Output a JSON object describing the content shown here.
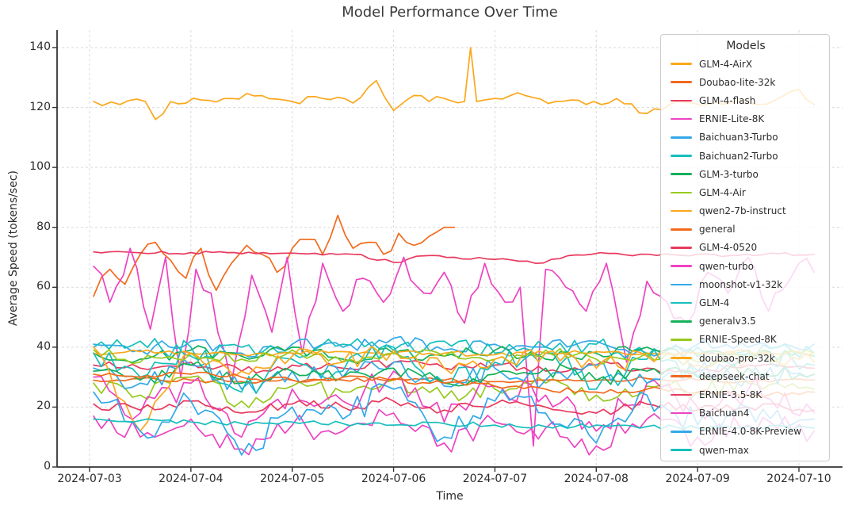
{
  "title": "Model Performance Over Time",
  "axes": {
    "xlabel": "Time",
    "ylabel": "Average Speed (tokens/sec)",
    "x_ticks": [
      "2024-07-03",
      "2024-07-04",
      "2024-07-05",
      "2024-07-06",
      "2024-07-07",
      "2024-07-08",
      "2024-07-09",
      "2024-07-10"
    ],
    "y_ticks": [
      0,
      20,
      40,
      60,
      80,
      100,
      120,
      140
    ],
    "ylim": [
      0,
      146
    ],
    "grid": "dashed",
    "spine_color": "#333333",
    "grid_color": "#d9d9d9"
  },
  "legend": {
    "title": "Models",
    "position": "right",
    "background": "rgba(255,255,255,0.8)"
  },
  "chart_data": {
    "type": "line",
    "x_unit": "days since 2024-07-03",
    "title": "Model Performance Over Time",
    "xlabel": "Time",
    "ylabel": "Average Speed (tokens/sec)",
    "series": [
      {
        "name": "GLM-4-AirX",
        "color": "#FBA71B",
        "jitter": 1.2,
        "x": [
          0.04,
          0.3,
          0.55,
          0.65,
          0.8,
          1.1,
          1.4,
          1.7,
          2.0,
          2.3,
          2.6,
          2.83,
          3.0,
          3.2,
          3.35,
          3.5,
          3.7,
          3.76,
          3.82,
          4.0,
          4.3,
          4.6,
          4.9,
          5.2,
          5.5,
          5.8,
          6.1,
          6.4,
          6.6,
          6.85,
          7.0,
          7.15
        ],
        "y": [
          122,
          121,
          122,
          116,
          122,
          122.5,
          123,
          124,
          122,
          123,
          121.5,
          129,
          119,
          124,
          122,
          123,
          122,
          140,
          122,
          123,
          124,
          122,
          121,
          123,
          118,
          122,
          121,
          122,
          121,
          124,
          126,
          121
        ]
      },
      {
        "name": "Doubao-lite-32k",
        "color": "#F26A1D",
        "jitter": 2.5,
        "x": [
          0.04,
          0.2,
          0.35,
          0.5,
          0.65,
          0.8,
          0.95,
          1.1,
          1.25,
          1.4,
          1.55,
          1.7,
          1.85,
          2.0,
          2.15,
          2.3,
          2.45,
          2.6,
          2.75,
          2.9,
          3.05,
          3.2,
          3.35,
          3.5,
          3.6
        ],
        "y": [
          57,
          66,
          61,
          71,
          75,
          69,
          63,
          73,
          59,
          68,
          74,
          71,
          65,
          73,
          76,
          71,
          84,
          73,
          75,
          71,
          78,
          74,
          77,
          80,
          80
        ]
      },
      {
        "name": "GLM-4-flash",
        "color": "#E83A5E",
        "jitter": 0.5,
        "x": [
          0.04,
          0.5,
          1.0,
          1.5,
          2.0,
          2.3,
          2.6,
          3.0,
          3.3,
          3.6,
          4.0,
          4.4,
          4.8,
          5.2,
          5.6,
          6.0,
          6.4,
          6.8,
          7.0,
          7.15
        ],
        "y": [
          71.8,
          71.5,
          71.6,
          71.2,
          71.4,
          70.8,
          71.0,
          68.3,
          70.5,
          70.0,
          69.3,
          68.0,
          70.8,
          71.3,
          70.6,
          71.0,
          70.6,
          71.2,
          70.8,
          71.0
        ]
      },
      {
        "name": "ERNIE-Lite-8K",
        "color": "#EE43C2",
        "jitter": 3.5,
        "x": [
          0.04,
          0.2,
          0.4,
          0.6,
          0.75,
          0.9,
          1.05,
          1.2,
          1.4,
          1.6,
          1.8,
          1.95,
          2.1,
          2.3,
          2.5,
          2.7,
          2.9,
          3.1,
          3.3,
          3.5,
          3.7,
          3.9,
          4.1,
          4.25,
          4.38,
          4.5,
          4.7,
          4.9,
          5.1,
          5.3,
          5.5,
          5.7,
          5.9,
          6.1,
          6.3,
          6.5,
          6.7,
          6.9,
          7.0,
          7.15
        ],
        "y": [
          67,
          55,
          73,
          46,
          70,
          30,
          66,
          58,
          28,
          64,
          45,
          70,
          38,
          68,
          52,
          63,
          55,
          70,
          58,
          65,
          48,
          68,
          55,
          60,
          7,
          66,
          60,
          52,
          68,
          35,
          62,
          55,
          48,
          65,
          58,
          70,
          52,
          62,
          68,
          65
        ]
      },
      {
        "name": "Baichuan3-Turbo",
        "color": "#33A8E8",
        "jitter": 2,
        "x": [
          0.04,
          0.5,
          1,
          1.5,
          2,
          2.5,
          3,
          3.5,
          4,
          4.5,
          5,
          5.5,
          6,
          6.5,
          7.15
        ],
        "y": [
          41,
          39,
          42,
          38,
          41,
          40,
          43,
          39,
          41,
          40,
          42,
          38,
          41,
          40,
          41
        ]
      },
      {
        "name": "Baichuan2-Turbo",
        "color": "#16BFBE",
        "jitter": 2.5,
        "x": [
          0.04,
          0.5,
          1,
          1.5,
          2,
          2.5,
          3,
          3.5,
          4,
          4.5,
          5,
          5.5,
          6,
          6.5,
          7.15
        ],
        "y": [
          40,
          42,
          37,
          40,
          38,
          41,
          39,
          42,
          38,
          40,
          41,
          37,
          40,
          39,
          38
        ]
      },
      {
        "name": "GLM-3-turbo",
        "color": "#13B159",
        "jitter": 2,
        "x": [
          0.04,
          0.5,
          1,
          1.5,
          2,
          2.5,
          3,
          3.5,
          4,
          4.5,
          5,
          5.5,
          6,
          6.5,
          7.15
        ],
        "y": [
          38,
          36,
          39,
          37,
          40,
          36,
          38,
          37,
          39,
          36,
          38,
          40,
          37,
          38,
          37
        ]
      },
      {
        "name": "GLM-4-Air",
        "color": "#97C91E",
        "jitter": 3,
        "x": [
          0.04,
          0.5,
          1,
          1.5,
          2,
          2.5,
          3,
          3.5,
          4,
          4.5,
          5,
          5.5,
          6,
          6.5,
          7.15
        ],
        "y": [
          28,
          24,
          30,
          22,
          27,
          25,
          29,
          23,
          26,
          28,
          24,
          27,
          25,
          28,
          26
        ]
      },
      {
        "name": "qwen2-7b-instruct",
        "color": "#FBA71B",
        "jitter": 0.8,
        "x": [
          0.04,
          0.5,
          1,
          1.5,
          2,
          2.5,
          3,
          3.5,
          4,
          4.5,
          5,
          5.5,
          6,
          6.5,
          7.15
        ],
        "y": [
          38,
          38.5,
          38,
          37.5,
          38,
          38.5,
          38,
          38,
          37.5,
          38,
          38.5,
          38,
          38,
          38.5,
          38
        ]
      },
      {
        "name": "general",
        "color": "#F26A1D",
        "jitter": 0.7,
        "x": [
          0.04,
          0.5,
          1,
          1.5,
          2,
          2.5,
          3,
          3.5,
          4,
          4.5,
          5,
          5.5,
          6,
          6.5,
          7.15
        ],
        "y": [
          29,
          29.5,
          29,
          28.5,
          29,
          29,
          29.5,
          29,
          28.5,
          29,
          29,
          29.5,
          29,
          28.5,
          29
        ]
      },
      {
        "name": "GLM-4-0520",
        "color": "#E83A5E",
        "jitter": 1.5,
        "x": [
          0.04,
          0.5,
          1,
          1.5,
          2,
          2.5,
          3,
          3.5,
          4,
          4.5,
          5,
          5.5,
          6,
          6.5,
          7.15
        ],
        "y": [
          34,
          33,
          35,
          32,
          34,
          33,
          35,
          33,
          34,
          32,
          34,
          33,
          32,
          34,
          33
        ]
      },
      {
        "name": "qwen-turbo",
        "color": "#EE43C2",
        "jitter": 5,
        "x": [
          0.04,
          0.5,
          1,
          1.5,
          2,
          2.5,
          3,
          3.5,
          4,
          4.5,
          5,
          5.5,
          6,
          6.5,
          7.15
        ],
        "y": [
          30,
          18,
          28,
          10,
          26,
          22,
          32,
          15,
          27,
          24,
          12,
          28,
          20,
          26,
          18
        ]
      },
      {
        "name": "moonshot-v1-32k",
        "color": "#33A8E8",
        "jitter": 3.5,
        "x": [
          0.04,
          0.5,
          1,
          1.5,
          2,
          2.5,
          3,
          3.5,
          4,
          4.5,
          5,
          5.5,
          6,
          6.5,
          7.15
        ],
        "y": [
          33,
          28,
          34,
          26,
          32,
          30,
          35,
          27,
          33,
          29,
          34,
          28,
          32,
          30,
          31
        ]
      },
      {
        "name": "GLM-4",
        "color": "#16BFBE",
        "jitter": 4,
        "x": [
          0.04,
          0.5,
          1,
          1.5,
          2,
          2.5,
          3,
          3.5,
          4,
          4.5,
          5,
          5.5,
          6,
          6.5,
          7.15
        ],
        "y": [
          38,
          30,
          40,
          25,
          36,
          32,
          40,
          28,
          35,
          38,
          26,
          36,
          30,
          38,
          34
        ]
      },
      {
        "name": "generalv3.5",
        "color": "#13B159",
        "jitter": 2.5,
        "x": [
          0.04,
          0.5,
          1,
          1.5,
          2,
          2.5,
          3,
          3.5,
          4,
          4.5,
          5,
          5.5,
          6,
          6.5,
          7.15
        ],
        "y": [
          32,
          29,
          34,
          28,
          32,
          30,
          33,
          28,
          31,
          33,
          29,
          32,
          30,
          33,
          31
        ]
      },
      {
        "name": "ERNIE-Speed-8K",
        "color": "#97C91E",
        "jitter": 2,
        "x": [
          0.04,
          0.5,
          1,
          1.5,
          2,
          2.5,
          3,
          3.5,
          4,
          4.5,
          5,
          5.5,
          6,
          6.5,
          7.15
        ],
        "y": [
          39,
          35,
          38,
          36,
          39,
          35,
          38,
          37,
          36,
          39,
          36,
          38,
          35,
          37,
          38
        ]
      },
      {
        "name": "doubao-pro-32k",
        "color": "#FBA71B",
        "jitter": 3,
        "x": [
          0.04,
          0.5,
          1,
          1.5,
          2,
          2.5,
          3,
          3.5,
          4,
          4.5,
          5,
          5.5,
          6,
          6.5,
          7.15
        ],
        "y": [
          40,
          12,
          38,
          32,
          37,
          35,
          39,
          33,
          36,
          38,
          33,
          37,
          34,
          36,
          35
        ]
      },
      {
        "name": "deepseek-chat",
        "color": "#F26A1D",
        "jitter": 1,
        "x": [
          0.04,
          0.5,
          1,
          1.5,
          2,
          2.5,
          3,
          3.5,
          4,
          4.5,
          5,
          5.5,
          6,
          6.5,
          7.15
        ],
        "y": [
          31,
          30,
          31,
          30,
          29,
          30,
          29,
          28,
          27,
          26,
          25,
          26,
          25,
          24,
          25
        ]
      },
      {
        "name": "ERNIE-3.5-8K",
        "color": "#E83A5E",
        "jitter": 1.5,
        "x": [
          0.04,
          0.5,
          1,
          1.5,
          2,
          2.5,
          3,
          3.5,
          4,
          4.5,
          5,
          5.5,
          6,
          6.5,
          7.15
        ],
        "y": [
          21,
          19,
          22,
          18,
          21,
          20,
          22,
          19,
          21,
          20,
          18,
          21,
          19,
          20,
          19
        ]
      },
      {
        "name": "Baichuan4",
        "color": "#EE43C2",
        "jitter": 4,
        "x": [
          0.04,
          0.5,
          1,
          1.5,
          2,
          2.5,
          3,
          3.5,
          4,
          4.5,
          5,
          5.5,
          6,
          6.5,
          7.15
        ],
        "y": [
          17,
          10,
          16,
          6,
          14,
          12,
          18,
          8,
          15,
          13,
          7,
          16,
          10,
          14,
          12
        ]
      },
      {
        "name": "ERNIE-4.0-8K-Preview",
        "color": "#33A8E8",
        "jitter": 5,
        "x": [
          0.04,
          0.5,
          1,
          1.5,
          2,
          2.5,
          3,
          3.5,
          4,
          4.5,
          5,
          5.5,
          6,
          6.5,
          7.15
        ],
        "y": [
          25,
          12,
          22,
          4,
          20,
          16,
          26,
          10,
          22,
          18,
          8,
          24,
          14,
          20,
          16
        ]
      },
      {
        "name": "qwen-max",
        "color": "#16BFBE",
        "jitter": 0.8,
        "x": [
          0.04,
          0.5,
          1,
          1.5,
          2,
          2.5,
          3,
          3.5,
          4,
          4.5,
          5,
          5.5,
          6,
          6.5,
          7.15
        ],
        "y": [
          16,
          15.5,
          15,
          14.5,
          15,
          14.5,
          14,
          14.5,
          14,
          13.5,
          14,
          13.5,
          13,
          13.5,
          13
        ]
      }
    ]
  }
}
